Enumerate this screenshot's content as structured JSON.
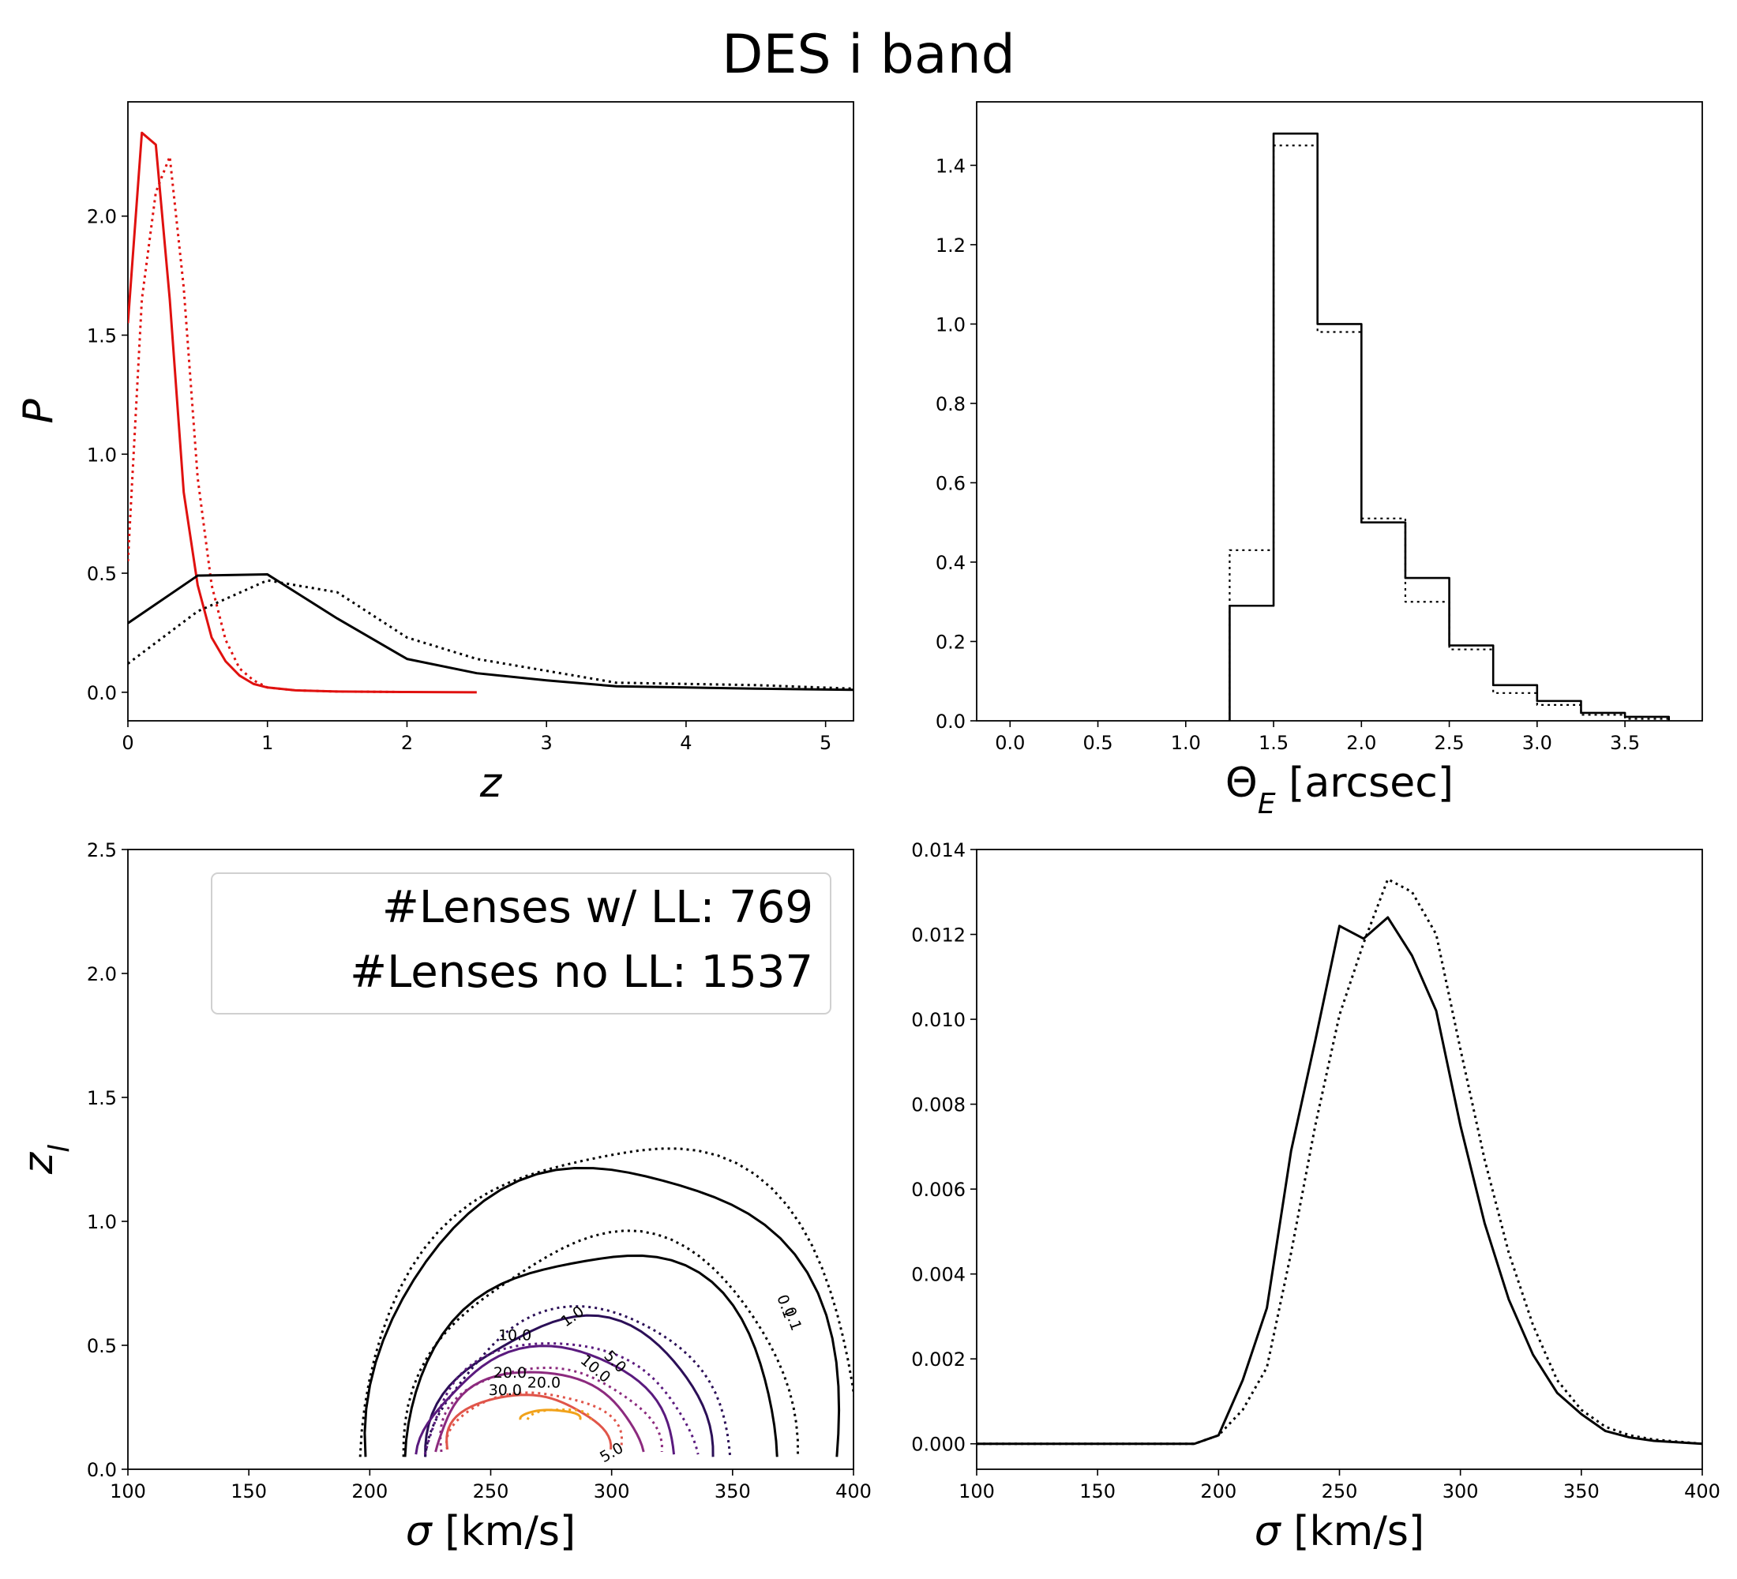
{
  "title": "DES i band",
  "chart_data": [
    {
      "type": "line",
      "xlabel": "z",
      "ylabel": "P",
      "xlim": [
        0,
        5.2
      ],
      "ylim": [
        -0.12,
        2.48
      ],
      "xticks": [
        0,
        1,
        2,
        3,
        4,
        5
      ],
      "yticks": [
        0.0,
        0.5,
        1.0,
        1.5,
        2.0
      ],
      "tick_labels_x": [
        "0",
        "1",
        "2",
        "3",
        "4",
        "5"
      ],
      "tick_labels_y": [
        "0.0",
        "0.5",
        "1.0",
        "1.5",
        "2.0"
      ],
      "series": [
        {
          "color": "#e0110f",
          "style": "solid",
          "x": [
            0.0,
            0.1,
            0.2,
            0.3,
            0.4,
            0.5,
            0.6,
            0.7,
            0.8,
            0.9,
            1.0,
            1.2,
            1.5,
            2.0,
            2.5
          ],
          "y": [
            1.55,
            2.35,
            2.3,
            1.65,
            0.84,
            0.45,
            0.23,
            0.13,
            0.07,
            0.035,
            0.02,
            0.008,
            0.003,
            0.001,
            0.0
          ]
        },
        {
          "color": "#e0110f",
          "style": "dotted",
          "x": [
            0.0,
            0.1,
            0.2,
            0.3,
            0.4,
            0.5,
            0.6,
            0.7,
            0.8,
            0.9,
            1.0,
            1.2,
            1.5,
            2.0
          ],
          "y": [
            0.55,
            1.65,
            2.1,
            2.25,
            1.7,
            0.9,
            0.45,
            0.22,
            0.1,
            0.05,
            0.02,
            0.008,
            0.003,
            0.001
          ]
        },
        {
          "color": "#000000",
          "style": "solid",
          "x": [
            0.0,
            0.5,
            1.0,
            1.5,
            2.0,
            2.5,
            3.0,
            3.5,
            4.0,
            4.5,
            5.2
          ],
          "y": [
            0.29,
            0.49,
            0.495,
            0.31,
            0.14,
            0.08,
            0.05,
            0.025,
            0.02,
            0.015,
            0.01
          ]
        },
        {
          "color": "#000000",
          "style": "dotted",
          "x": [
            0.0,
            0.5,
            1.0,
            1.5,
            2.0,
            2.5,
            3.0,
            3.5,
            4.0,
            4.5,
            5.2
          ],
          "y": [
            0.12,
            0.34,
            0.47,
            0.42,
            0.23,
            0.14,
            0.09,
            0.04,
            0.035,
            0.03,
            0.015
          ]
        }
      ]
    },
    {
      "type": "bar",
      "xlabel": "Θ_E [arcsec]",
      "ylabel": "",
      "xlim": [
        -0.19,
        3.94
      ],
      "ylim": [
        0,
        1.56
      ],
      "xticks": [
        0.0,
        0.5,
        1.0,
        1.5,
        2.0,
        2.5,
        3.0,
        3.5
      ],
      "yticks": [
        0.0,
        0.2,
        0.4,
        0.6,
        0.8,
        1.0,
        1.2,
        1.4
      ],
      "tick_labels_x": [
        "0.0",
        "0.5",
        "1.0",
        "1.5",
        "2.0",
        "2.5",
        "3.0",
        "3.5"
      ],
      "tick_labels_y": [
        "0.0",
        "0.2",
        "0.4",
        "0.6",
        "0.8",
        "1.0",
        "1.2",
        "1.4"
      ],
      "bin_edges": [
        1.25,
        1.5,
        1.75,
        2.0,
        2.25,
        2.5,
        2.75,
        3.0,
        3.25,
        3.5,
        3.75
      ],
      "series": [
        {
          "style": "solid",
          "values": [
            0.29,
            1.48,
            1.0,
            0.5,
            0.36,
            0.19,
            0.09,
            0.05,
            0.02,
            0.01
          ]
        },
        {
          "style": "dotted",
          "values": [
            0.43,
            1.45,
            0.98,
            0.51,
            0.3,
            0.18,
            0.07,
            0.04,
            0.015,
            0.005
          ]
        }
      ]
    },
    {
      "type": "contour",
      "xlabel": "σ [km/s]",
      "ylabel": "z_l",
      "xlim": [
        100,
        400
      ],
      "ylim": [
        0,
        2.5
      ],
      "xticks": [
        100,
        150,
        200,
        250,
        300,
        350,
        400
      ],
      "yticks": [
        0.0,
        0.5,
        1.0,
        1.5,
        2.0,
        2.5
      ],
      "tick_labels_x": [
        "100",
        "150",
        "200",
        "250",
        "300",
        "350",
        "400"
      ],
      "tick_labels_y": [
        "0.0",
        "0.5",
        "1.0",
        "1.5",
        "2.0",
        "2.5"
      ],
      "legend": [
        "#Lenses w/ LL: 769",
        "#Lenses no LL: 1537"
      ],
      "legend_position": "top-right",
      "contour_levels": [
        {
          "level": 0.1,
          "color": "#000000",
          "center": [
            300,
            0.05
          ],
          "rx": 95,
          "ry": 1.2
        },
        {
          "level": 1.0,
          "color": "#000000",
          "center": [
            295,
            0.05
          ],
          "rx": 75,
          "ry": 0.83
        },
        {
          "level": 5.0,
          "color": "#2b0f57",
          "center": [
            285,
            0.05
          ],
          "rx": 58,
          "ry": 0.55
        },
        {
          "level": 10.0,
          "color": "#5a1a7e",
          "center": [
            275,
            0.06
          ],
          "rx": 52,
          "ry": 0.42
        },
        {
          "level": 20.0,
          "color": "#8c2a7e",
          "center": [
            270,
            0.07
          ],
          "rx": 42,
          "ry": 0.32
        },
        {
          "level": 30.0,
          "color": "#e0554a",
          "center": [
            265,
            0.08
          ],
          "rx": 33,
          "ry": 0.22
        },
        {
          "level": 40.0,
          "color": "#f1a21a",
          "center": [
            275,
            0.2
          ],
          "rx": 12,
          "ry": 0.04
        }
      ],
      "contour_labels": [
        "1.0",
        "0.1",
        "0.1",
        "5.0",
        "10.0",
        "10.0",
        "20.0",
        "20.0",
        "30.0",
        "5.0"
      ]
    },
    {
      "type": "line",
      "xlabel": "σ [km/s]",
      "ylabel": "",
      "xlim": [
        100,
        400
      ],
      "ylim": [
        -0.0006,
        0.014
      ],
      "xticks": [
        100,
        150,
        200,
        250,
        300,
        350,
        400
      ],
      "yticks": [
        0.0,
        0.002,
        0.004,
        0.006,
        0.008,
        0.01,
        0.012,
        0.014
      ],
      "tick_labels_x": [
        "100",
        "150",
        "200",
        "250",
        "300",
        "350",
        "400"
      ],
      "tick_labels_y": [
        "0.000",
        "0.002",
        "0.004",
        "0.006",
        "0.008",
        "0.010",
        "0.012",
        "0.014"
      ],
      "series": [
        {
          "color": "#000000",
          "style": "solid",
          "x": [
            100,
            190,
            200,
            210,
            220,
            230,
            240,
            250,
            260,
            270,
            280,
            290,
            300,
            310,
            320,
            330,
            340,
            350,
            360,
            370,
            380,
            400
          ],
          "y": [
            0.0,
            0.0,
            0.0002,
            0.0015,
            0.0032,
            0.0069,
            0.0095,
            0.0122,
            0.0119,
            0.0124,
            0.0115,
            0.0102,
            0.0075,
            0.0052,
            0.0034,
            0.0021,
            0.0012,
            0.0007,
            0.0003,
            0.00015,
            7e-05,
            0.0
          ]
        },
        {
          "color": "#000000",
          "style": "dotted",
          "x": [
            100,
            190,
            200,
            210,
            220,
            230,
            240,
            250,
            260,
            270,
            280,
            290,
            300,
            310,
            320,
            330,
            340,
            350,
            360,
            370,
            380,
            400
          ],
          "y": [
            0.0,
            0.0,
            0.0002,
            0.0008,
            0.0018,
            0.0045,
            0.0075,
            0.0101,
            0.0118,
            0.0133,
            0.013,
            0.012,
            0.0093,
            0.0067,
            0.0045,
            0.0028,
            0.0015,
            0.0008,
            0.0004,
            0.0002,
            0.0001,
            0.0
          ]
        }
      ]
    }
  ]
}
